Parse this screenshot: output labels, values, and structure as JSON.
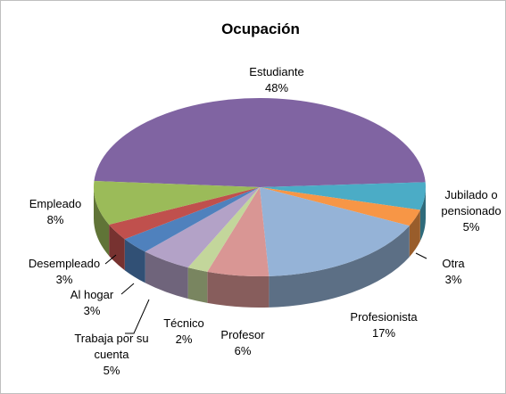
{
  "chart_data": {
    "type": "pie",
    "title": "Ocupación",
    "categories": [
      "Estudiante",
      "Jubilado o pensionado",
      "Otra",
      "Profesionista",
      "Profesor",
      "Técnico",
      "Trabaja por su cuenta",
      "Al hogar",
      "Desempleado",
      "Empleado"
    ],
    "values": [
      48,
      5,
      3,
      17,
      6,
      2,
      5,
      3,
      3,
      8
    ],
    "value_labels": [
      "48%",
      "5%",
      "3%",
      "17%",
      "6%",
      "2%",
      "5%",
      "3%",
      "3%",
      "8%"
    ],
    "colors": [
      "#8064A2",
      "#4BACC6",
      "#F79646",
      "#95B3D7",
      "#D99694",
      "#C3D69B",
      "#B3A2C7",
      "#4F81BD",
      "#C0504D",
      "#9BBB59"
    ]
  }
}
